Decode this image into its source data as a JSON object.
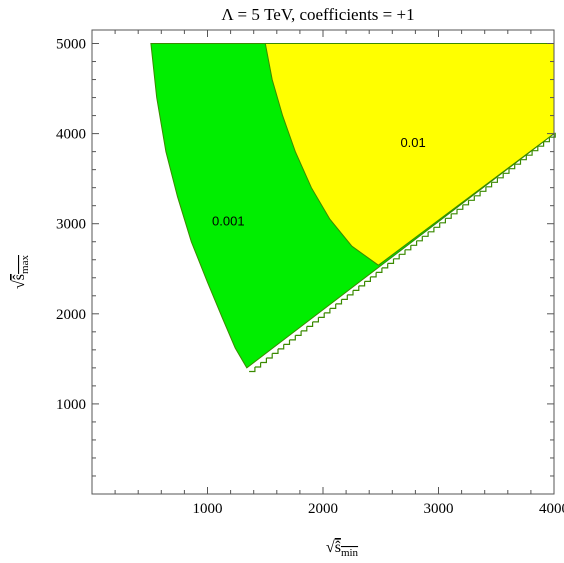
{
  "chart_data": {
    "type": "area",
    "title": "Λ = 5 TeV, coefficients = +1",
    "xlabel": "√ŝmin",
    "ylabel": "√ŝmax",
    "xlim": [
      0,
      4000
    ],
    "ylim": [
      0,
      5150
    ],
    "x_ticks": [
      1000,
      2000,
      3000,
      4000
    ],
    "y_ticks": [
      1000,
      2000,
      3000,
      4000,
      5000
    ],
    "grid": false,
    "colors": {
      "green": "#00ee00",
      "yellow": "#ffff00",
      "edge": "#3a8a00"
    },
    "regions": [
      {
        "label": "0.001",
        "color": "green",
        "label_at": [
          1180,
          2980
        ],
        "boundary": [
          [
            510,
            5000
          ],
          [
            560,
            4400
          ],
          [
            640,
            3800
          ],
          [
            740,
            3300
          ],
          [
            860,
            2800
          ],
          [
            1000,
            2350
          ],
          [
            1130,
            1950
          ],
          [
            1240,
            1620
          ],
          [
            1340,
            1400
          ],
          [
            1340,
            1400
          ],
          [
            4000,
            4000
          ],
          [
            4000,
            5000
          ]
        ]
      },
      {
        "label": "0.01",
        "color": "yellow",
        "label_at": [
          2780,
          3850
        ],
        "boundary": [
          [
            1500,
            5000
          ],
          [
            1560,
            4600
          ],
          [
            1650,
            4200
          ],
          [
            1760,
            3800
          ],
          [
            1900,
            3400
          ],
          [
            2060,
            3050
          ],
          [
            2250,
            2750
          ],
          [
            2480,
            2540
          ],
          [
            4000,
            4000
          ],
          [
            4000,
            5000
          ]
        ]
      }
    ]
  }
}
